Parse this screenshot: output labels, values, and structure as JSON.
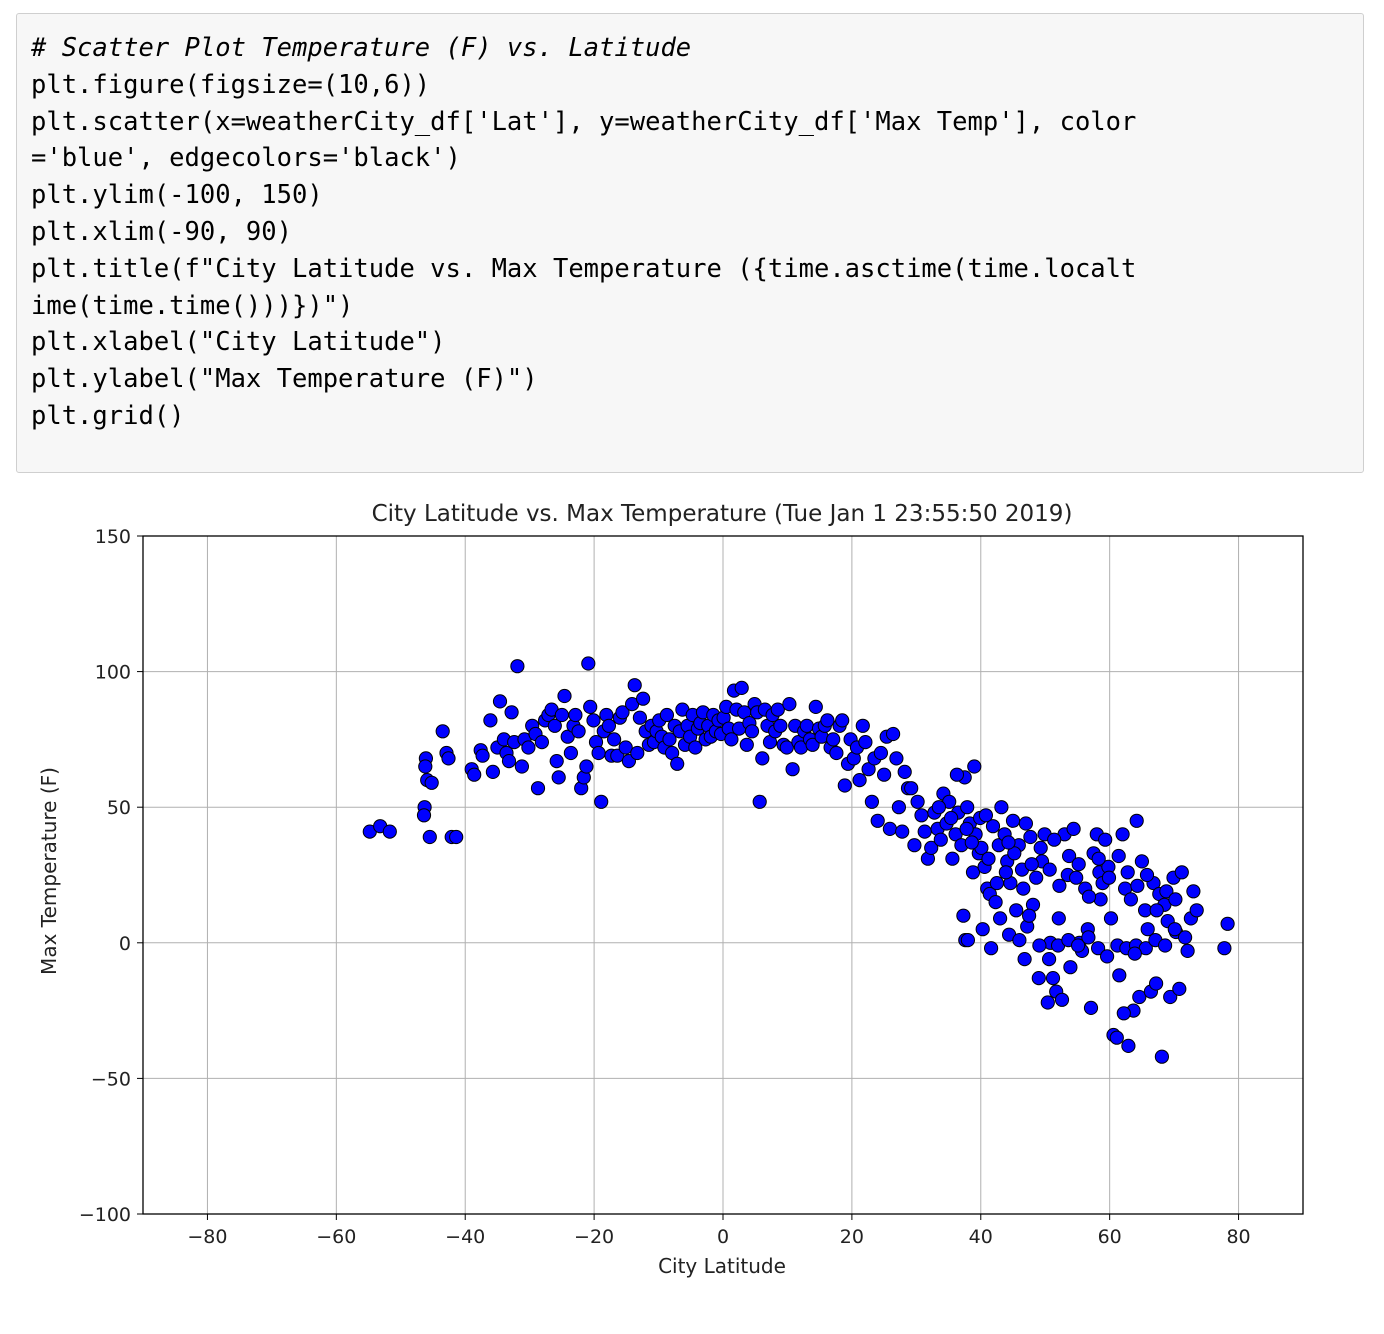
{
  "code_cell": {
    "lines": [
      "# Scatter Plot Temperature (F) vs. Latitude",
      "plt.figure(figsize=(10,6))",
      "plt.scatter(x=weatherCity_df['Lat'], y=weatherCity_df['Max Temp'], color",
      "='blue', edgecolors='black')",
      "plt.ylim(-100, 150)",
      "plt.xlim(-90, 90)",
      "plt.title(f\"City Latitude vs. Max Temperature ({time.asctime(time.localt",
      "ime(time.time()))})\")",
      "plt.xlabel(\"City Latitude\")",
      "plt.ylabel(\"Max Temperature (F)\")",
      "plt.grid()"
    ]
  },
  "chart_data": {
    "type": "scatter",
    "title": "City Latitude vs. Max Temperature (Tue Jan  1 23:55:50 2019)",
    "xlabel": "City Latitude",
    "ylabel": "Max Temperature (F)",
    "xlim": [
      -90,
      90
    ],
    "ylim": [
      -100,
      150
    ],
    "xticks": [
      -80,
      -60,
      -40,
      -20,
      0,
      20,
      40,
      60,
      80
    ],
    "xtick_labels": [
      "−80",
      "−60",
      "−40",
      "−20",
      "0",
      "20",
      "40",
      "60",
      "80"
    ],
    "yticks": [
      -100,
      -50,
      0,
      50,
      100,
      150
    ],
    "ytick_labels": [
      "−100",
      "−50",
      "0",
      "50",
      "100",
      "150"
    ],
    "grid": true,
    "marker_color": "#0000ff",
    "edge_color": "#000000",
    "points": [
      [
        -54.8,
        41
      ],
      [
        -53.2,
        43
      ],
      [
        -51.7,
        41
      ],
      [
        -46.1,
        68
      ],
      [
        -46.2,
        65
      ],
      [
        -45.9,
        60
      ],
      [
        -45.2,
        59
      ],
      [
        -46.3,
        50
      ],
      [
        -46.4,
        47
      ],
      [
        -45.5,
        39
      ],
      [
        -43.5,
        78
      ],
      [
        -42.9,
        70
      ],
      [
        -42.6,
        68
      ],
      [
        -42.1,
        39
      ],
      [
        -41.4,
        39
      ],
      [
        -39.0,
        64
      ],
      [
        -38.6,
        62
      ],
      [
        -37.6,
        71
      ],
      [
        -37.3,
        69
      ],
      [
        -36.1,
        82
      ],
      [
        -35.7,
        63
      ],
      [
        -35.0,
        72
      ],
      [
        -34.6,
        89
      ],
      [
        -34.0,
        75
      ],
      [
        -33.6,
        70
      ],
      [
        -33.2,
        67
      ],
      [
        -32.8,
        85
      ],
      [
        -32.4,
        74
      ],
      [
        -31.9,
        102
      ],
      [
        -31.2,
        65
      ],
      [
        -30.8,
        75
      ],
      [
        -30.2,
        72
      ],
      [
        -29.6,
        80
      ],
      [
        -29.1,
        77
      ],
      [
        -28.7,
        57
      ],
      [
        -28.1,
        74
      ],
      [
        -27.6,
        82
      ],
      [
        -27.1,
        84
      ],
      [
        -26.6,
        86
      ],
      [
        -26.1,
        80
      ],
      [
        -25.8,
        67
      ],
      [
        -25.5,
        61
      ],
      [
        -25.0,
        84
      ],
      [
        -24.6,
        91
      ],
      [
        -24.1,
        76
      ],
      [
        -23.6,
        70
      ],
      [
        -23.2,
        80
      ],
      [
        -22.9,
        84
      ],
      [
        -22.4,
        78
      ],
      [
        -22.0,
        57
      ],
      [
        -21.6,
        61
      ],
      [
        -21.2,
        65
      ],
      [
        -20.9,
        103
      ],
      [
        -20.6,
        87
      ],
      [
        -20.1,
        82
      ],
      [
        -19.7,
        74
      ],
      [
        -19.3,
        70
      ],
      [
        -18.9,
        52
      ],
      [
        -18.5,
        78
      ],
      [
        -18.1,
        84
      ],
      [
        -17.7,
        80
      ],
      [
        -17.3,
        69
      ],
      [
        -16.9,
        75
      ],
      [
        -16.4,
        69
      ],
      [
        -16.0,
        83
      ],
      [
        -15.6,
        85
      ],
      [
        -15.1,
        72
      ],
      [
        -14.6,
        67
      ],
      [
        -14.1,
        88
      ],
      [
        -13.7,
        95
      ],
      [
        -13.3,
        70
      ],
      [
        -12.9,
        83
      ],
      [
        -12.4,
        90
      ],
      [
        -12.0,
        78
      ],
      [
        -11.5,
        73
      ],
      [
        -11.1,
        80
      ],
      [
        -10.7,
        74
      ],
      [
        -10.3,
        78
      ],
      [
        -9.9,
        82
      ],
      [
        -9.5,
        76
      ],
      [
        -9.1,
        72
      ],
      [
        -8.7,
        84
      ],
      [
        -8.3,
        75
      ],
      [
        -7.9,
        70
      ],
      [
        -7.5,
        80
      ],
      [
        -7.1,
        66
      ],
      [
        -6.7,
        78
      ],
      [
        -6.3,
        86
      ],
      [
        -5.9,
        73
      ],
      [
        -5.5,
        80
      ],
      [
        -5.1,
        76
      ],
      [
        -4.7,
        84
      ],
      [
        -4.3,
        72
      ],
      [
        -3.9,
        79
      ],
      [
        -3.5,
        81
      ],
      [
        -3.1,
        85
      ],
      [
        -2.7,
        75
      ],
      [
        -2.3,
        80
      ],
      [
        -1.9,
        76
      ],
      [
        -1.5,
        84
      ],
      [
        -1.1,
        78
      ],
      [
        -0.7,
        82
      ],
      [
        -0.3,
        77
      ],
      [
        0.1,
        83
      ],
      [
        0.5,
        87
      ],
      [
        0.9,
        79
      ],
      [
        1.3,
        75
      ],
      [
        1.7,
        93
      ],
      [
        2.1,
        86
      ],
      [
        2.5,
        79
      ],
      [
        2.9,
        94
      ],
      [
        3.3,
        85
      ],
      [
        3.7,
        73
      ],
      [
        4.1,
        81
      ],
      [
        4.5,
        78
      ],
      [
        4.9,
        88
      ],
      [
        5.3,
        85
      ],
      [
        5.7,
        52
      ],
      [
        6.1,
        68
      ],
      [
        6.5,
        86
      ],
      [
        6.9,
        80
      ],
      [
        7.3,
        74
      ],
      [
        7.7,
        84
      ],
      [
        8.1,
        78
      ],
      [
        8.5,
        86
      ],
      [
        8.9,
        80
      ],
      [
        9.4,
        73
      ],
      [
        9.9,
        72
      ],
      [
        10.3,
        88
      ],
      [
        10.8,
        64
      ],
      [
        11.2,
        80
      ],
      [
        11.7,
        74
      ],
      [
        12.1,
        72
      ],
      [
        12.6,
        78
      ],
      [
        13.0,
        80
      ],
      [
        13.5,
        75
      ],
      [
        13.9,
        73
      ],
      [
        14.4,
        87
      ],
      [
        14.9,
        79
      ],
      [
        15.3,
        76
      ],
      [
        15.8,
        80
      ],
      [
        16.2,
        82
      ],
      [
        16.7,
        72
      ],
      [
        17.1,
        75
      ],
      [
        17.6,
        70
      ],
      [
        18.1,
        80
      ],
      [
        18.5,
        82
      ],
      [
        18.9,
        58
      ],
      [
        19.4,
        66
      ],
      [
        19.8,
        75
      ],
      [
        20.3,
        68
      ],
      [
        20.8,
        72
      ],
      [
        21.2,
        60
      ],
      [
        21.7,
        80
      ],
      [
        22.1,
        74
      ],
      [
        22.6,
        64
      ],
      [
        23.1,
        52
      ],
      [
        23.5,
        68
      ],
      [
        24.0,
        45
      ],
      [
        24.5,
        70
      ],
      [
        25.0,
        62
      ],
      [
        25.4,
        76
      ],
      [
        25.9,
        42
      ],
      [
        26.4,
        77
      ],
      [
        26.9,
        68
      ],
      [
        27.3,
        50
      ],
      [
        27.8,
        41
      ],
      [
        28.2,
        63
      ],
      [
        28.7,
        57
      ],
      [
        29.2,
        57
      ],
      [
        29.7,
        36
      ],
      [
        30.2,
        52
      ],
      [
        30.8,
        47
      ],
      [
        31.3,
        41
      ],
      [
        31.8,
        31
      ],
      [
        32.3,
        35
      ],
      [
        32.8,
        48
      ],
      [
        33.3,
        42
      ],
      [
        33.8,
        38
      ],
      [
        34.2,
        55
      ],
      [
        34.7,
        44
      ],
      [
        35.1,
        52
      ],
      [
        35.6,
        31
      ],
      [
        36.1,
        40
      ],
      [
        36.5,
        48
      ],
      [
        37.0,
        36
      ],
      [
        37.5,
        61
      ],
      [
        37.9,
        50
      ],
      [
        38.3,
        44
      ],
      [
        38.8,
        26
      ],
      [
        39.2,
        40
      ],
      [
        37.3,
        10
      ],
      [
        37.6,
        1
      ],
      [
        38.0,
        1
      ],
      [
        39.7,
        33
      ],
      [
        40.1,
        35
      ],
      [
        40.6,
        28
      ],
      [
        41.0,
        20
      ],
      [
        41.4,
        18
      ],
      [
        41.9,
        43
      ],
      [
        42.3,
        15
      ],
      [
        42.8,
        36
      ],
      [
        43.2,
        50
      ],
      [
        43.7,
        40
      ],
      [
        44.1,
        30
      ],
      [
        44.6,
        22
      ],
      [
        45.0,
        45
      ],
      [
        45.5,
        12
      ],
      [
        45.9,
        36
      ],
      [
        46.4,
        27
      ],
      [
        46.8,
        -6
      ],
      [
        47.2,
        6
      ],
      [
        47.7,
        39
      ],
      [
        48.1,
        14
      ],
      [
        48.6,
        24
      ],
      [
        49.0,
        -13
      ],
      [
        49.5,
        30
      ],
      [
        49.9,
        40
      ],
      [
        50.4,
        -22
      ],
      [
        50.8,
        0
      ],
      [
        51.2,
        -13
      ],
      [
        51.7,
        -18
      ],
      [
        52.1,
        9
      ],
      [
        52.6,
        -21
      ],
      [
        53.0,
        40
      ],
      [
        53.5,
        25
      ],
      [
        53.9,
        -9
      ],
      [
        54.4,
        42
      ],
      [
        54.8,
        24
      ],
      [
        55.3,
        0
      ],
      [
        55.7,
        -3
      ],
      [
        56.2,
        20
      ],
      [
        56.6,
        5
      ],
      [
        57.1,
        -24
      ],
      [
        57.5,
        33
      ],
      [
        58.0,
        40
      ],
      [
        58.4,
        26
      ],
      [
        58.9,
        22
      ],
      [
        59.3,
        38
      ],
      [
        59.8,
        28
      ],
      [
        60.2,
        9
      ],
      [
        60.6,
        -34
      ],
      [
        61.1,
        -35
      ],
      [
        61.5,
        -12
      ],
      [
        62.0,
        40
      ],
      [
        62.4,
        20
      ],
      [
        62.9,
        -38
      ],
      [
        63.3,
        16
      ],
      [
        63.7,
        -25
      ],
      [
        64.2,
        45
      ],
      [
        64.6,
        -20
      ],
      [
        65.0,
        30
      ],
      [
        65.5,
        12
      ],
      [
        65.9,
        5
      ],
      [
        66.4,
        -18
      ],
      [
        66.8,
        22
      ],
      [
        67.2,
        -15
      ],
      [
        67.7,
        18
      ],
      [
        68.1,
        -42
      ],
      [
        68.5,
        14
      ],
      [
        69.0,
        8
      ],
      [
        69.4,
        -20
      ],
      [
        69.9,
        24
      ],
      [
        70.3,
        4
      ],
      [
        70.8,
        -17
      ],
      [
        71.2,
        26
      ],
      [
        71.7,
        2
      ],
      [
        72.1,
        -3
      ],
      [
        72.6,
        9
      ],
      [
        73.0,
        19
      ],
      [
        73.5,
        12
      ],
      [
        77.8,
        -2
      ],
      [
        78.3,
        7
      ],
      [
        40.3,
        5
      ],
      [
        41.6,
        -2
      ],
      [
        43.0,
        9
      ],
      [
        44.4,
        3
      ],
      [
        46.0,
        1
      ],
      [
        47.5,
        10
      ],
      [
        49.1,
        -1
      ],
      [
        50.6,
        -6
      ],
      [
        52.0,
        -1
      ],
      [
        53.6,
        1
      ],
      [
        55.1,
        -1
      ],
      [
        56.7,
        2
      ],
      [
        58.2,
        -2
      ],
      [
        59.6,
        -5
      ],
      [
        61.2,
        -1
      ],
      [
        62.6,
        -2
      ],
      [
        64.1,
        -1
      ],
      [
        65.6,
        -2
      ],
      [
        67.1,
        1
      ],
      [
        68.6,
        -1
      ],
      [
        70.1,
        5
      ],
      [
        62.2,
        -26
      ],
      [
        63.9,
        -4
      ],
      [
        58.6,
        16
      ],
      [
        38.6,
        37
      ],
      [
        39.9,
        46
      ],
      [
        41.2,
        31
      ],
      [
        42.5,
        22
      ],
      [
        43.9,
        26
      ],
      [
        45.2,
        33
      ],
      [
        46.6,
        20
      ],
      [
        47.9,
        29
      ],
      [
        49.3,
        35
      ],
      [
        50.7,
        27
      ],
      [
        52.2,
        21
      ],
      [
        53.7,
        32
      ],
      [
        55.2,
        29
      ],
      [
        56.8,
        17
      ],
      [
        58.3,
        31
      ],
      [
        59.9,
        24
      ],
      [
        61.4,
        32
      ],
      [
        62.8,
        26
      ],
      [
        64.3,
        21
      ],
      [
        65.8,
        25
      ],
      [
        67.3,
        12
      ],
      [
        68.8,
        19
      ],
      [
        70.2,
        16
      ],
      [
        36.3,
        62
      ],
      [
        39.0,
        65
      ],
      [
        33.5,
        50
      ],
      [
        35.4,
        46
      ],
      [
        37.8,
        42
      ],
      [
        40.8,
        47
      ],
      [
        44.3,
        37
      ],
      [
        47.0,
        44
      ],
      [
        51.4,
        38
      ]
    ]
  }
}
